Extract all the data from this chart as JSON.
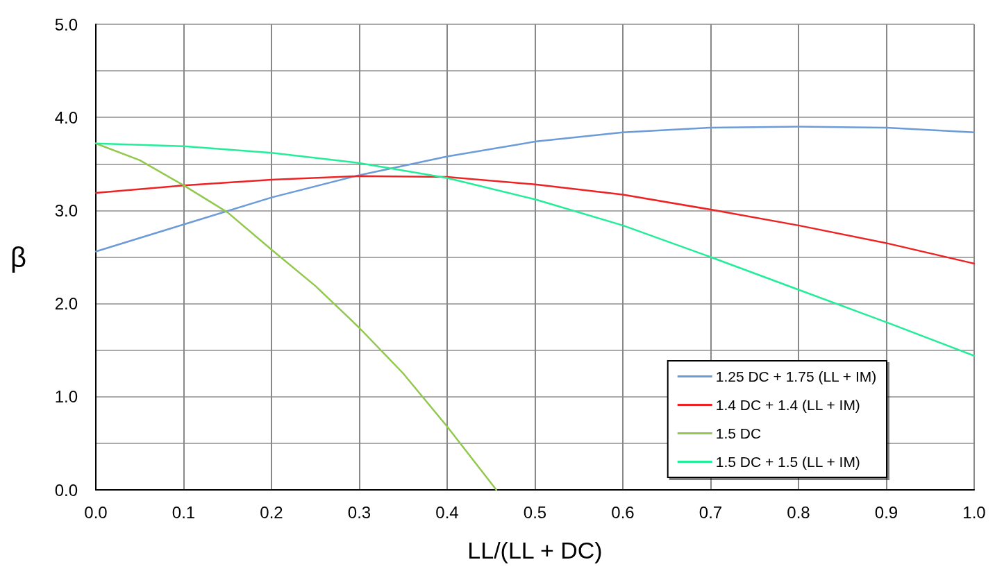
{
  "chart_data": {
    "type": "line",
    "xlabel": "LL/(LL + DC)",
    "ylabel": "β",
    "xlim": [
      0,
      1
    ],
    "xticks": [
      {
        "value": 0,
        "label": "0.0"
      },
      {
        "value": 0.1,
        "label": "0.1"
      },
      {
        "value": 0.2,
        "label": "0.2"
      },
      {
        "value": 0.3,
        "label": "0.3"
      },
      {
        "value": 0.4,
        "label": "0.4"
      },
      {
        "value": 0.5,
        "label": "0.5"
      },
      {
        "value": 0.6,
        "label": "0.6"
      },
      {
        "value": 0.7,
        "label": "0.7"
      },
      {
        "value": 0.8,
        "label": "0.8"
      },
      {
        "value": 0.9,
        "label": "0.9"
      },
      {
        "value": 1,
        "label": "1.0"
      }
    ],
    "ylim": [
      0,
      5
    ],
    "yticks": [
      {
        "value": 0,
        "label": "0.0"
      },
      {
        "value": 0.5,
        "label": null
      },
      {
        "value": 1,
        "label": "1.0"
      },
      {
        "value": 1.5,
        "label": null
      },
      {
        "value": 2,
        "label": "2.0"
      },
      {
        "value": 2.5,
        "label": null
      },
      {
        "value": 3,
        "label": "3.0"
      },
      {
        "value": 3.5,
        "label": null
      },
      {
        "value": 4,
        "label": "4.0"
      },
      {
        "value": 4.5,
        "label": null
      },
      {
        "value": 5,
        "label": "5.0"
      }
    ],
    "grid": true,
    "legend": "bottom right",
    "marker": "none",
    "line_style": "solid",
    "series": [
      {
        "name": "1.25 DC + 1.75 (LL + IM)",
        "color": "#6b9bd8",
        "x": [
          0,
          0.1,
          0.2,
          0.3,
          0.4,
          0.5,
          0.6,
          0.7,
          0.8,
          0.9,
          1
        ],
        "values": [
          2.56,
          2.85,
          3.14,
          3.38,
          3.58,
          3.74,
          3.84,
          3.89,
          3.9,
          3.89,
          3.84
        ]
      },
      {
        "name": "1.4 DC + 1.4 (LL + IM)",
        "color": "#ee2222",
        "x": [
          0,
          0.1,
          0.2,
          0.3,
          0.4,
          0.5,
          0.6,
          0.7,
          0.8,
          0.9,
          1
        ],
        "values": [
          3.19,
          3.27,
          3.33,
          3.37,
          3.36,
          3.28,
          3.17,
          3.01,
          2.84,
          2.65,
          2.43
        ]
      },
      {
        "name": "1.5 DC",
        "color": "#92c84e",
        "x": [
          0,
          0.05,
          0.1,
          0.15,
          0.2,
          0.25,
          0.3,
          0.35,
          0.4,
          0.456
        ],
        "values": [
          3.72,
          3.54,
          3.27,
          2.98,
          2.58,
          2.19,
          1.74,
          1.25,
          0.68,
          0
        ]
      },
      {
        "name": "1.5 DC + 1.5 (LL + IM)",
        "color": "#22ee99",
        "x": [
          0,
          0.1,
          0.2,
          0.3,
          0.4,
          0.5,
          0.6,
          0.7,
          0.8,
          0.9,
          1
        ],
        "values": [
          3.72,
          3.69,
          3.62,
          3.51,
          3.35,
          3.12,
          2.84,
          2.5,
          2.15,
          1.8,
          1.44
        ]
      }
    ]
  }
}
